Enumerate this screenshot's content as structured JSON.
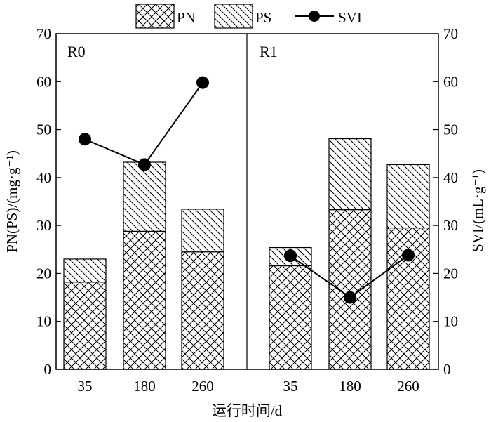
{
  "chart_data": {
    "type": "bar",
    "stacked": true,
    "dual_axis": true,
    "xlabel": "运行时间/d",
    "ylabel_left": "PN(PS)/(mg·g⁻¹)",
    "ylabel_right": "SVI/(mL·g⁻¹)",
    "ylim_left": [
      0,
      70
    ],
    "ylim_right": [
      0,
      70
    ],
    "yticks": [
      "0",
      "10",
      "20",
      "30",
      "40",
      "50",
      "60",
      "70"
    ],
    "legend_position": "top",
    "legend": [
      "PN",
      "PS",
      "SVI"
    ],
    "groups": [
      {
        "label": "R0",
        "categories": [
          "35",
          "180",
          "260"
        ],
        "PN": [
          18.2,
          28.8,
          24.5
        ],
        "PS": [
          4.8,
          14.4,
          8.9
        ],
        "SVI": [
          48,
          42.7,
          59.8
        ]
      },
      {
        "label": "R1",
        "categories": [
          "35",
          "180",
          "260"
        ],
        "PN": [
          21.6,
          33.3,
          29.5
        ],
        "PS": [
          3.8,
          14.8,
          13.2
        ],
        "SVI": [
          23.7,
          15,
          23.8
        ]
      }
    ]
  }
}
